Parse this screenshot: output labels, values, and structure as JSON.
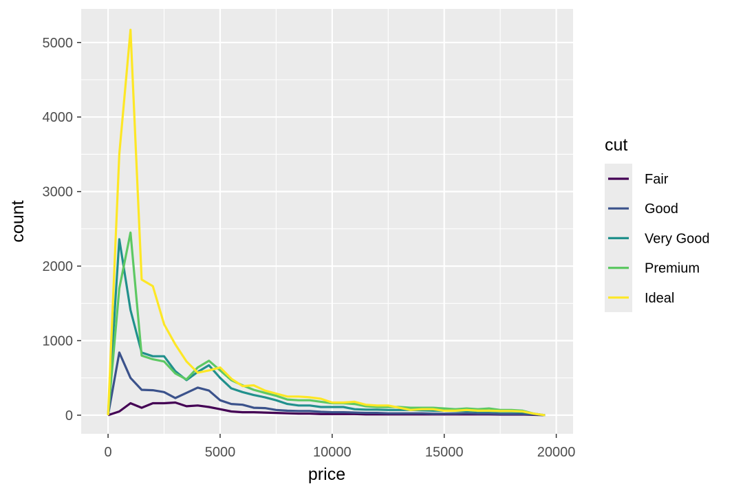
{
  "chart_data": {
    "type": "line",
    "xlabel": "price",
    "ylabel": "count",
    "xlim": [
      -1200,
      20750
    ],
    "ylim": [
      -250,
      5450
    ],
    "x_ticks": [
      0,
      5000,
      10000,
      15000,
      20000
    ],
    "y_ticks": [
      0,
      1000,
      2000,
      3000,
      4000,
      5000
    ],
    "x_tick_labels": [
      "0",
      "5000",
      "10000",
      "15000",
      "20000"
    ],
    "y_tick_labels": [
      "0",
      "1000",
      "2000",
      "3000",
      "4000",
      "5000"
    ],
    "grid": true,
    "legend": {
      "title": "cut",
      "placement": "right"
    },
    "x": [
      0,
      500,
      1000,
      1500,
      2000,
      2500,
      3000,
      3500,
      4000,
      4500,
      5000,
      5500,
      6000,
      6500,
      7000,
      7500,
      8000,
      8500,
      9000,
      9500,
      10000,
      10500,
      11000,
      11500,
      12000,
      12500,
      13000,
      13500,
      14000,
      14500,
      15000,
      15500,
      16000,
      16500,
      17000,
      17500,
      18000,
      18500,
      19000,
      19500
    ],
    "series": [
      {
        "name": "Fair",
        "color": "#440154",
        "values": [
          0,
          50,
          160,
          100,
          160,
          160,
          170,
          120,
          130,
          110,
          80,
          50,
          40,
          40,
          35,
          30,
          25,
          20,
          20,
          15,
          15,
          15,
          15,
          10,
          10,
          10,
          10,
          10,
          10,
          10,
          10,
          10,
          10,
          10,
          10,
          8,
          8,
          8,
          5,
          0
        ]
      },
      {
        "name": "Good",
        "color": "#3B528B",
        "values": [
          0,
          840,
          500,
          340,
          335,
          310,
          230,
          300,
          370,
          330,
          200,
          150,
          140,
          100,
          95,
          70,
          60,
          55,
          55,
          45,
          40,
          40,
          35,
          30,
          30,
          25,
          25,
          25,
          25,
          20,
          20,
          20,
          25,
          20,
          20,
          15,
          15,
          15,
          10,
          0
        ]
      },
      {
        "name": "Very Good",
        "color": "#21908C",
        "values": [
          0,
          2360,
          1410,
          840,
          790,
          790,
          590,
          470,
          580,
          670,
          500,
          360,
          310,
          270,
          240,
          200,
          150,
          130,
          130,
          110,
          110,
          110,
          80,
          75,
          75,
          70,
          70,
          70,
          65,
          60,
          60,
          55,
          55,
          50,
          50,
          45,
          45,
          40,
          20,
          0
        ]
      },
      {
        "name": "Premium",
        "color": "#5DC863",
        "values": [
          0,
          1700,
          2450,
          800,
          750,
          720,
          560,
          480,
          640,
          730,
          600,
          470,
          400,
          340,
          300,
          260,
          210,
          200,
          200,
          180,
          160,
          160,
          150,
          120,
          110,
          110,
          110,
          100,
          100,
          100,
          90,
          80,
          90,
          80,
          90,
          70,
          70,
          60,
          20,
          0
        ]
      },
      {
        "name": "Ideal",
        "color": "#FDE725",
        "values": [
          0,
          3500,
          5170,
          1820,
          1730,
          1220,
          950,
          720,
          570,
          600,
          640,
          490,
          390,
          400,
          330,
          290,
          250,
          250,
          240,
          220,
          170,
          170,
          180,
          140,
          130,
          130,
          100,
          70,
          80,
          80,
          60,
          60,
          70,
          60,
          60,
          55,
          55,
          50,
          20,
          0
        ]
      }
    ]
  }
}
